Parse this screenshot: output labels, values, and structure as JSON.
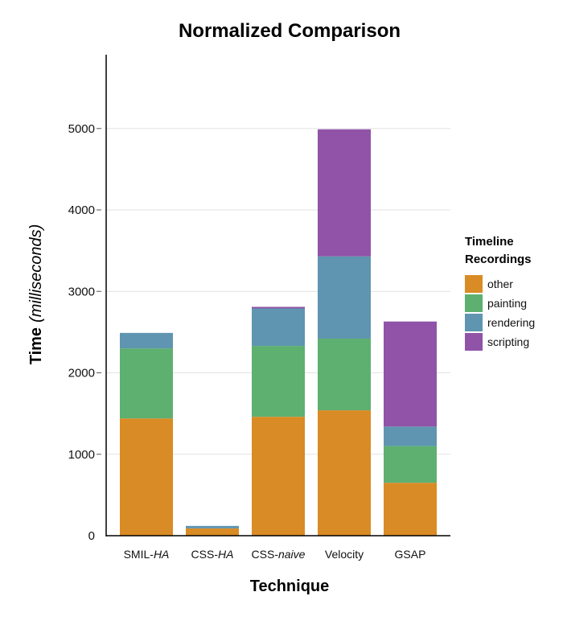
{
  "chart_data": {
    "type": "bar",
    "stacked": true,
    "title": "Normalized Comparison",
    "xlabel": "Technique",
    "ylabel_main": "Time",
    "ylabel_unit": "(milliseconds)",
    "categories": [
      {
        "main": "SMIL-",
        "italic": "HA"
      },
      {
        "main": "CSS-",
        "italic": "HA"
      },
      {
        "main": "CSS-",
        "italic": "naive"
      },
      {
        "main": "Velocity",
        "italic": ""
      },
      {
        "main": "GSAP",
        "italic": ""
      }
    ],
    "yticks": [
      "0",
      "1000",
      "2000",
      "3000",
      "4000",
      "5000"
    ],
    "ylim": [
      0,
      5900
    ],
    "grid": "horizontal",
    "legend_title_line1": "Timeline",
    "legend_title_line2": "Recordings",
    "legend_position": "right",
    "series": [
      {
        "name": "other",
        "color": "#D98B25",
        "values": [
          1440,
          90,
          1460,
          1540,
          650
        ]
      },
      {
        "name": "painting",
        "color": "#5DB070",
        "values": [
          860,
          0,
          870,
          880,
          450
        ]
      },
      {
        "name": "rendering",
        "color": "#5F95B0",
        "values": [
          190,
          30,
          460,
          1010,
          240
        ]
      },
      {
        "name": "scripting",
        "color": "#9053A8",
        "values": [
          0,
          0,
          20,
          1560,
          1290
        ]
      }
    ]
  }
}
